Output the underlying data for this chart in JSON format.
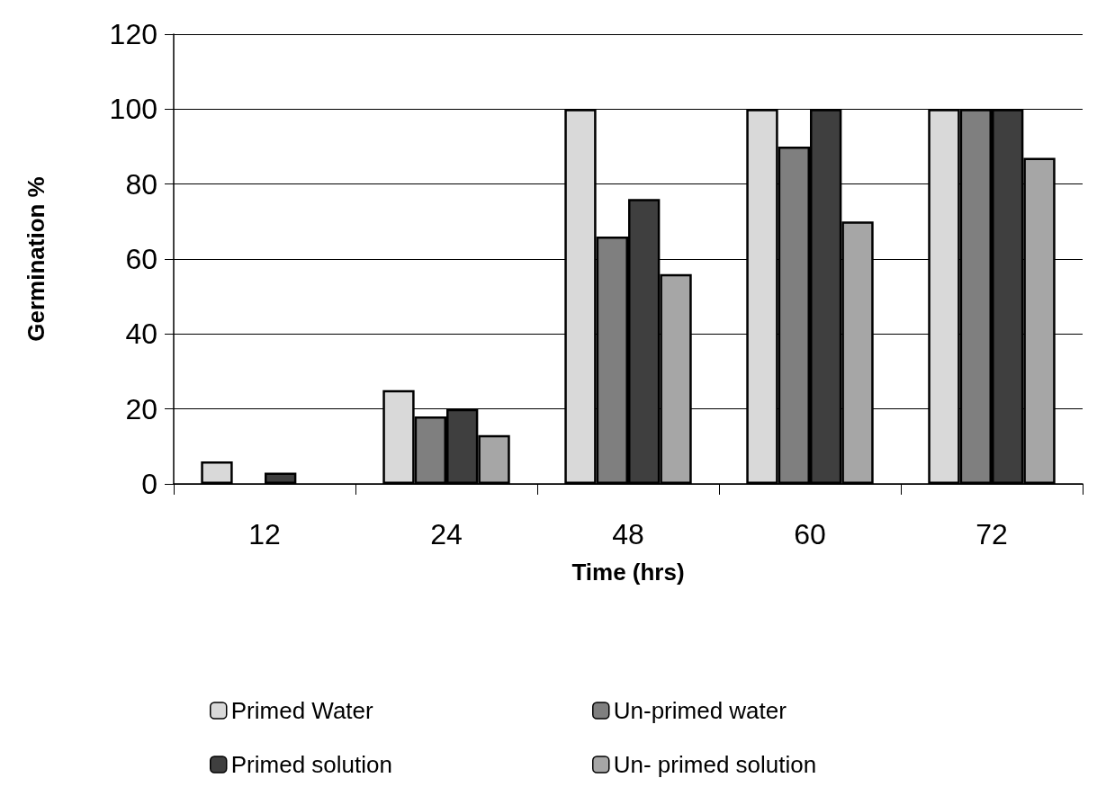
{
  "chart_data": {
    "type": "bar",
    "xlabel": "Time (hrs)",
    "ylabel": "Germination %",
    "categories": [
      "12",
      "24",
      "48",
      "60",
      "72"
    ],
    "series": [
      {
        "name": "Primed Water",
        "color": "#d9d9d9",
        "values": [
          6,
          25,
          100,
          100,
          100
        ]
      },
      {
        "name": "Un-primed water",
        "color": "#7f7f7f",
        "values": [
          0,
          18,
          66,
          90,
          100
        ]
      },
      {
        "name": "Primed solution",
        "color": "#3f3f3f",
        "values": [
          3,
          20,
          76,
          100,
          100
        ]
      },
      {
        "name": "Un- primed solution",
        "color": "#a6a6a6",
        "values": [
          0,
          13,
          56,
          70,
          87
        ]
      }
    ],
    "ylim": [
      0,
      120
    ],
    "yticks": [
      0,
      20,
      40,
      60,
      80,
      100,
      120
    ],
    "grid": "y",
    "legend": "bottom"
  }
}
